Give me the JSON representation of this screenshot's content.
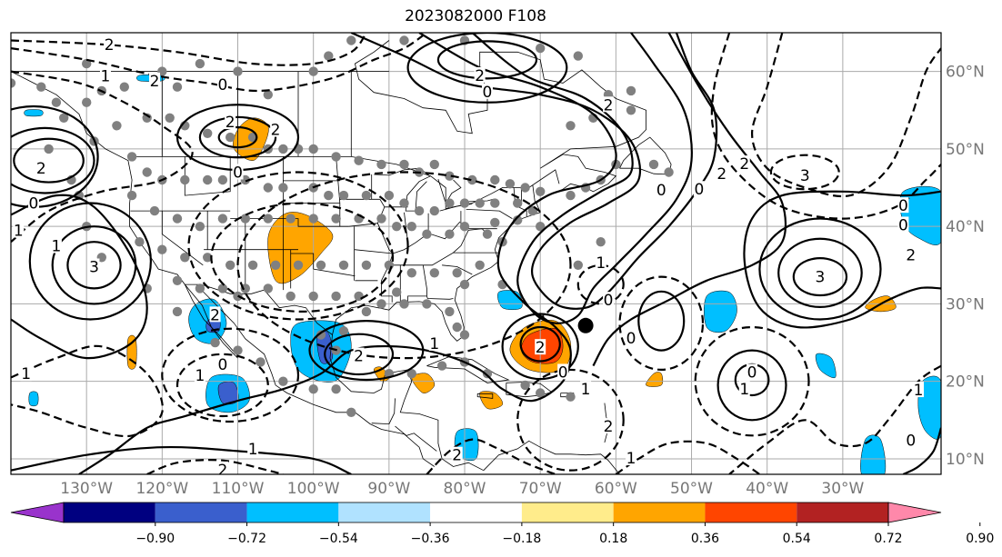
{
  "title": "2023082000 F108",
  "map": {
    "lon_range": [
      -140,
      -17
    ],
    "lat_range": [
      8,
      65
    ],
    "gridline_color": "#aaaaaa",
    "grid": true
  },
  "longitude_labels": [
    "130°W",
    "120°W",
    "110°W",
    "100°W",
    "90°W",
    "80°W",
    "70°W",
    "60°W",
    "50°W",
    "40°W",
    "30°W"
  ],
  "longitude_values": [
    -130,
    -120,
    -110,
    -100,
    -90,
    -80,
    -70,
    -60,
    -50,
    -40,
    -30
  ],
  "latitude_labels": [
    "10°N",
    "20°N",
    "30°N",
    "40°N",
    "50°N",
    "60°N"
  ],
  "latitude_values": [
    10,
    20,
    30,
    40,
    50,
    60
  ],
  "contour_labels": [
    {
      "text": "2",
      "lon": -127,
      "lat": 63.5
    },
    {
      "text": "1",
      "lon": -127.5,
      "lat": 59.4
    },
    {
      "text": "2",
      "lon": -121,
      "lat": 58.8
    },
    {
      "text": "0",
      "lon": -112,
      "lat": 58.3
    },
    {
      "text": "2",
      "lon": -111,
      "lat": 53.5
    },
    {
      "text": "2",
      "lon": -105,
      "lat": 52.5
    },
    {
      "text": "2",
      "lon": -136,
      "lat": 47.5
    },
    {
      "text": "0",
      "lon": -110,
      "lat": 47.0
    },
    {
      "text": "0",
      "lon": -137,
      "lat": 43.0
    },
    {
      "text": "1",
      "lon": -139,
      "lat": 39.5
    },
    {
      "text": "1",
      "lon": -134,
      "lat": 37.5
    },
    {
      "text": "3",
      "lon": -129,
      "lat": 34.8
    },
    {
      "text": "2",
      "lon": -113,
      "lat": 28.6
    },
    {
      "text": "2",
      "lon": -78,
      "lat": 59.5
    },
    {
      "text": "0",
      "lon": -77,
      "lat": 57.4
    },
    {
      "text": "2",
      "lon": -61,
      "lat": 55.7
    },
    {
      "text": "0",
      "lon": -54,
      "lat": 44.7
    },
    {
      "text": "1",
      "lon": -62,
      "lat": 35.3
    },
    {
      "text": "0",
      "lon": -61,
      "lat": 30.5
    },
    {
      "text": "0",
      "lon": -49,
      "lat": 44.8
    },
    {
      "text": "2",
      "lon": -46,
      "lat": 46.8
    },
    {
      "text": "2",
      "lon": -43,
      "lat": 48.1
    },
    {
      "text": "3",
      "lon": -35,
      "lat": 46.6
    },
    {
      "text": "0",
      "lon": -22,
      "lat": 42.7
    },
    {
      "text": "0",
      "lon": -22,
      "lat": 40.2
    },
    {
      "text": "2",
      "lon": -21,
      "lat": 36.3
    },
    {
      "text": "3",
      "lon": -33,
      "lat": 33.5
    },
    {
      "text": "0",
      "lon": -58,
      "lat": 25.6
    },
    {
      "text": "2",
      "lon": -70,
      "lat": 24.4
    },
    {
      "text": "2",
      "lon": -94,
      "lat": 23.3
    },
    {
      "text": "1",
      "lon": -84,
      "lat": 24.9
    },
    {
      "text": "0",
      "lon": -67,
      "lat": 21.2
    },
    {
      "text": "1",
      "lon": -64,
      "lat": 19.0
    },
    {
      "text": "0",
      "lon": -42,
      "lat": 21.2
    },
    {
      "text": "1",
      "lon": -43,
      "lat": 19.0
    },
    {
      "text": "1",
      "lon": -20,
      "lat": 18.9
    },
    {
      "text": "0",
      "lon": -21,
      "lat": 12.4
    },
    {
      "text": "0",
      "lon": -112,
      "lat": 22.2
    },
    {
      "text": "1",
      "lon": -115,
      "lat": 20.8
    },
    {
      "text": "1",
      "lon": -138,
      "lat": 21.0
    },
    {
      "text": "1",
      "lon": -108,
      "lat": 11.3
    },
    {
      "text": "2",
      "lon": -112,
      "lat": 8.6
    },
    {
      "text": "2",
      "lon": -81,
      "lat": 10.5
    },
    {
      "text": "1",
      "lon": -58,
      "lat": 10.1
    },
    {
      "text": "2",
      "lon": -61,
      "lat": 14.2
    }
  ],
  "colorbar": {
    "colors": [
      "#9933cc",
      "#000080",
      "#3a5fcd",
      "#00bfff",
      "#b0e2ff",
      "#ffffff",
      "#ffec8b",
      "#ffa500",
      "#ff4500",
      "#b22222",
      "#ff88aa"
    ],
    "labels": [
      "−0.90",
      "−0.72",
      "−0.54",
      "−0.36",
      "−0.18",
      "0.18",
      "0.36",
      "0.54",
      "0.72",
      "0.90"
    ],
    "values": [
      -0.9,
      -0.72,
      -0.54,
      -0.36,
      -0.18,
      0.18,
      0.36,
      0.54,
      0.72,
      0.9
    ]
  },
  "filled_colors": {
    "light_blue": "#b0e2ff",
    "blue": "#00bfff",
    "mid_blue": "#3a5fcd",
    "navy": "#000080",
    "yellow": "#ffec8b",
    "orange": "#ffa500",
    "red_orange": "#ff4500"
  },
  "station_dot_color": "#808080",
  "marker": {
    "lon": -64,
    "lat": 27.2,
    "color": "#000000"
  }
}
